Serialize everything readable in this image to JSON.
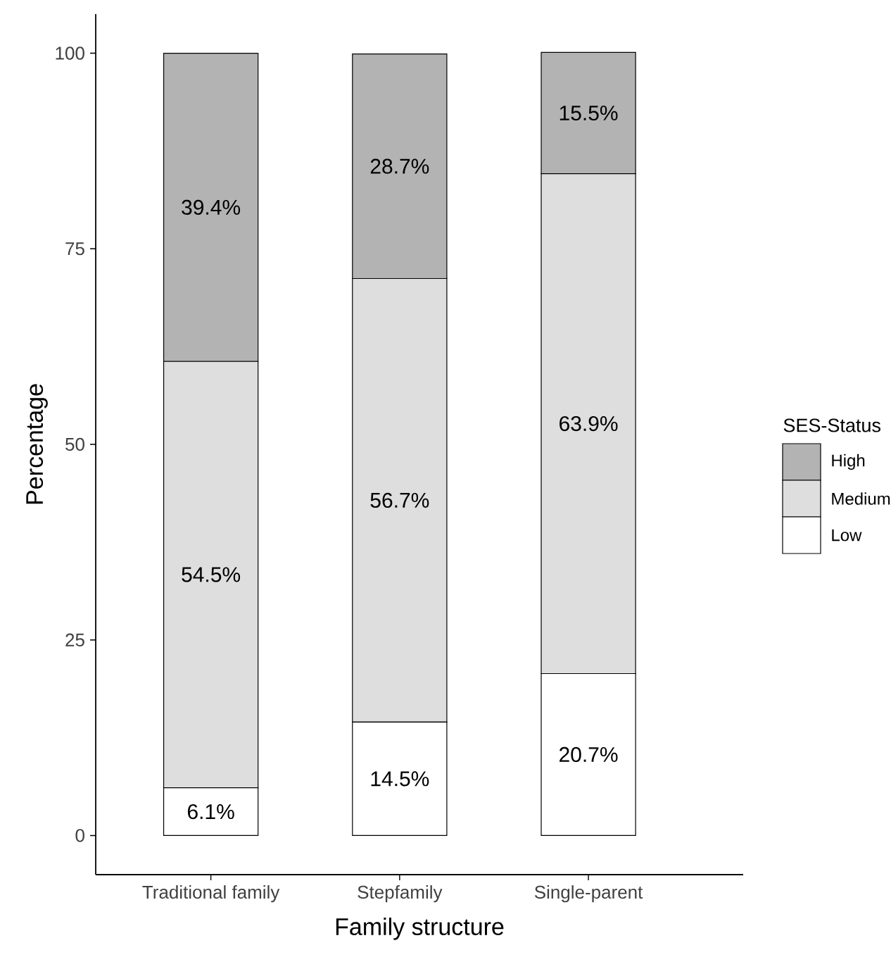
{
  "chart_data": {
    "type": "bar",
    "stacked": true,
    "xlabel": "Family structure",
    "ylabel": "Percentage",
    "legend_title": "SES-Status",
    "legend": "right",
    "categories": [
      "Traditional family",
      "Stepfamily",
      "Single-parent"
    ],
    "series": [
      {
        "name": "Low",
        "color": "#ffffff",
        "values": [
          6.1,
          14.5,
          20.7
        ],
        "value_labels": [
          "6.1%",
          "14.5%",
          "20.7%"
        ]
      },
      {
        "name": "Medium",
        "color": "#dedede",
        "values": [
          54.5,
          56.7,
          63.9
        ],
        "value_labels": [
          "54.5%",
          "56.7%",
          "63.9%"
        ]
      },
      {
        "name": "High",
        "color": "#b3b3b3",
        "values": [
          39.4,
          28.7,
          15.5
        ],
        "value_labels": [
          "39.4%",
          "28.7%",
          "15.5%"
        ]
      }
    ],
    "ylim": [
      -5,
      105
    ],
    "yticks": [
      0,
      25,
      50,
      75,
      100
    ],
    "grid": false
  }
}
